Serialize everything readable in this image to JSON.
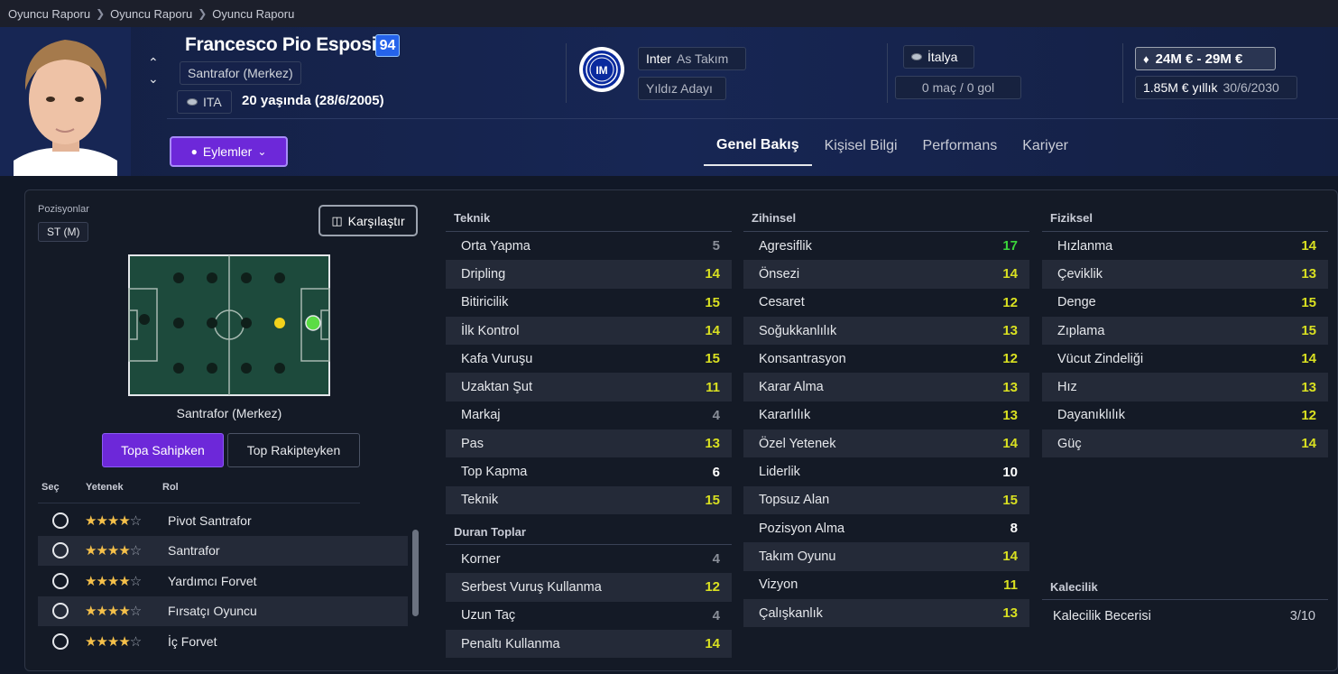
{
  "breadcrumb": [
    "Oyuncu Raporu",
    "Oyuncu Raporu",
    "Oyuncu Raporu"
  ],
  "player": {
    "name": "Francesco Pio Esposito",
    "rating": "94",
    "position": "Santrafor (Merkez)",
    "nation_code": "ITA",
    "age_text": "20 yaşında (28/6/2005)",
    "club": "Inter",
    "club_status": "As Takım",
    "potential": "Yıldız Adayı",
    "nation": "İtalya",
    "caps": "0 maç / 0 gol",
    "value": "24M € - 29M €",
    "wage": "1.85M € yıllık",
    "contract_end": "30/6/2030"
  },
  "actions_label": "Eylemler",
  "tabs": [
    {
      "label": "Genel Bakış",
      "active": true
    },
    {
      "label": "Kişisel Bilgi",
      "active": false
    },
    {
      "label": "Performans",
      "active": false
    },
    {
      "label": "Kariyer",
      "active": false
    }
  ],
  "positions": {
    "title": "Pozisyonlar",
    "chip": "ST (M)",
    "compare_label": "Karşılaştır",
    "pitch_label": "Santrafor (Merkez)",
    "toggle_on": "Topa Sahipken",
    "toggle_off": "Top Rakipteyken",
    "headers": {
      "select": "Seç",
      "ability": "Yetenek",
      "role": "Rol"
    },
    "roles": [
      {
        "name": "Pivot Santrafor",
        "stars": 4
      },
      {
        "name": "Santrafor",
        "stars": 4
      },
      {
        "name": "Yardımcı Forvet",
        "stars": 4
      },
      {
        "name": "Fırsatçı Oyuncu",
        "stars": 4
      },
      {
        "name": "İç Forvet",
        "stars": 4
      }
    ]
  },
  "colors": {
    "high": "#d9e021",
    "top": "#3bd53b",
    "mid": "#ffffff",
    "low": "#8a8f99"
  },
  "technical": {
    "title": "Teknik",
    "items": [
      {
        "name": "Orta Yapma",
        "value": 5
      },
      {
        "name": "Dripling",
        "value": 14
      },
      {
        "name": "Bitiricilik",
        "value": 15
      },
      {
        "name": "İlk Kontrol",
        "value": 14
      },
      {
        "name": "Kafa Vuruşu",
        "value": 15
      },
      {
        "name": "Uzaktan Şut",
        "value": 11
      },
      {
        "name": "Markaj",
        "value": 4
      },
      {
        "name": "Pas",
        "value": 13
      },
      {
        "name": "Top Kapma",
        "value": 6
      },
      {
        "name": "Teknik",
        "value": 15
      }
    ]
  },
  "set_pieces": {
    "title": "Duran Toplar",
    "items": [
      {
        "name": "Korner",
        "value": 4
      },
      {
        "name": "Serbest Vuruş Kullanma",
        "value": 12
      },
      {
        "name": "Uzun Taç",
        "value": 4
      },
      {
        "name": "Penaltı Kullanma",
        "value": 14
      }
    ]
  },
  "mental": {
    "title": "Zihinsel",
    "items": [
      {
        "name": "Agresiflik",
        "value": 17
      },
      {
        "name": "Önsezi",
        "value": 14
      },
      {
        "name": "Cesaret",
        "value": 12
      },
      {
        "name": "Soğukkanlılık",
        "value": 13
      },
      {
        "name": "Konsantrasyon",
        "value": 12
      },
      {
        "name": "Karar Alma",
        "value": 13
      },
      {
        "name": "Kararlılık",
        "value": 13
      },
      {
        "name": "Özel Yetenek",
        "value": 14
      },
      {
        "name": "Liderlik",
        "value": 10
      },
      {
        "name": "Topsuz Alan",
        "value": 15
      },
      {
        "name": "Pozisyon Alma",
        "value": 8
      },
      {
        "name": "Takım Oyunu",
        "value": 14
      },
      {
        "name": "Vizyon",
        "value": 11
      },
      {
        "name": "Çalışkanlık",
        "value": 13
      }
    ]
  },
  "physical": {
    "title": "Fiziksel",
    "items": [
      {
        "name": "Hızlanma",
        "value": 14
      },
      {
        "name": "Çeviklik",
        "value": 13
      },
      {
        "name": "Denge",
        "value": 15
      },
      {
        "name": "Zıplama",
        "value": 15
      },
      {
        "name": "Vücut Zindeliği",
        "value": 14
      },
      {
        "name": "Hız",
        "value": 13
      },
      {
        "name": "Dayanıklılık",
        "value": 12
      },
      {
        "name": "Güç",
        "value": 14
      }
    ]
  },
  "goalkeeping": {
    "title": "Kalecilik",
    "label": "Kalecilik Becerisi",
    "value": "3/10"
  }
}
